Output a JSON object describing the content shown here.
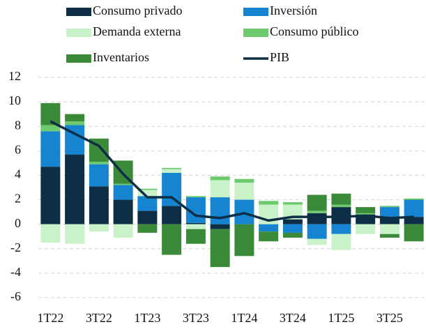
{
  "chart_data": {
    "type": "bar",
    "stacked": true,
    "categories": [
      "1T22",
      null,
      "3T22",
      null,
      "1T23",
      null,
      "3T23",
      null,
      "1T24",
      null,
      "3T24",
      null,
      "1T25",
      null,
      "3T25",
      null
    ],
    "series": [
      {
        "name": "Consumo privado",
        "color": "#0d2f45",
        "values": [
          4.7,
          5.7,
          3.1,
          2.0,
          1.1,
          1.5,
          0.1,
          -0.4,
          0,
          0,
          0.4,
          0.9,
          1.4,
          0.8,
          0.5,
          0.6
        ]
      },
      {
        "name": "Inversión",
        "color": "#1684d0",
        "values": [
          2.9,
          2.4,
          1.8,
          1.2,
          1.2,
          2.7,
          2.1,
          2.2,
          2.0,
          -0.6,
          -0.7,
          -1.2,
          -0.8,
          0,
          0.9,
          1.4
        ]
      },
      {
        "name": "Demanda externa",
        "color": "#c9f2c9",
        "values": [
          -1.5,
          -1.6,
          -0.6,
          -1.1,
          0.5,
          0.3,
          -0.4,
          1.4,
          1.4,
          1.6,
          1.2,
          -0.5,
          -1.3,
          -0.8,
          -0.8,
          0
        ]
      },
      {
        "name": "Consumo público",
        "color": "#6dca6d",
        "values": [
          0.5,
          0.3,
          0.2,
          0.1,
          0.1,
          0.1,
          0.1,
          0.3,
          0.3,
          0.3,
          0.2,
          0.2,
          0.2,
          0.1,
          0.1,
          0.1
        ]
      },
      {
        "name": "Inventarios",
        "color": "#3a8a3a",
        "values": [
          1.8,
          0.6,
          1.9,
          1.9,
          -0.7,
          -2.5,
          -1.2,
          -3.1,
          -2.6,
          -0.8,
          -0.4,
          1.3,
          0.9,
          0.5,
          -0.3,
          -1.4
        ]
      },
      {
        "name": "PIB",
        "color": "#0d2f45",
        "type": "line",
        "values": [
          8.4,
          7.4,
          6.4,
          4.1,
          2.2,
          2.2,
          0.7,
          0.5,
          0.9,
          0.3,
          0.6,
          0.6,
          0.6,
          0.7,
          0.5,
          0.6
        ]
      }
    ],
    "ylim": [
      -6,
      12
    ],
    "yticks": [
      -6,
      -4,
      -2,
      0,
      2,
      4,
      6,
      8,
      10,
      12
    ],
    "grid": true,
    "legend": "top"
  }
}
